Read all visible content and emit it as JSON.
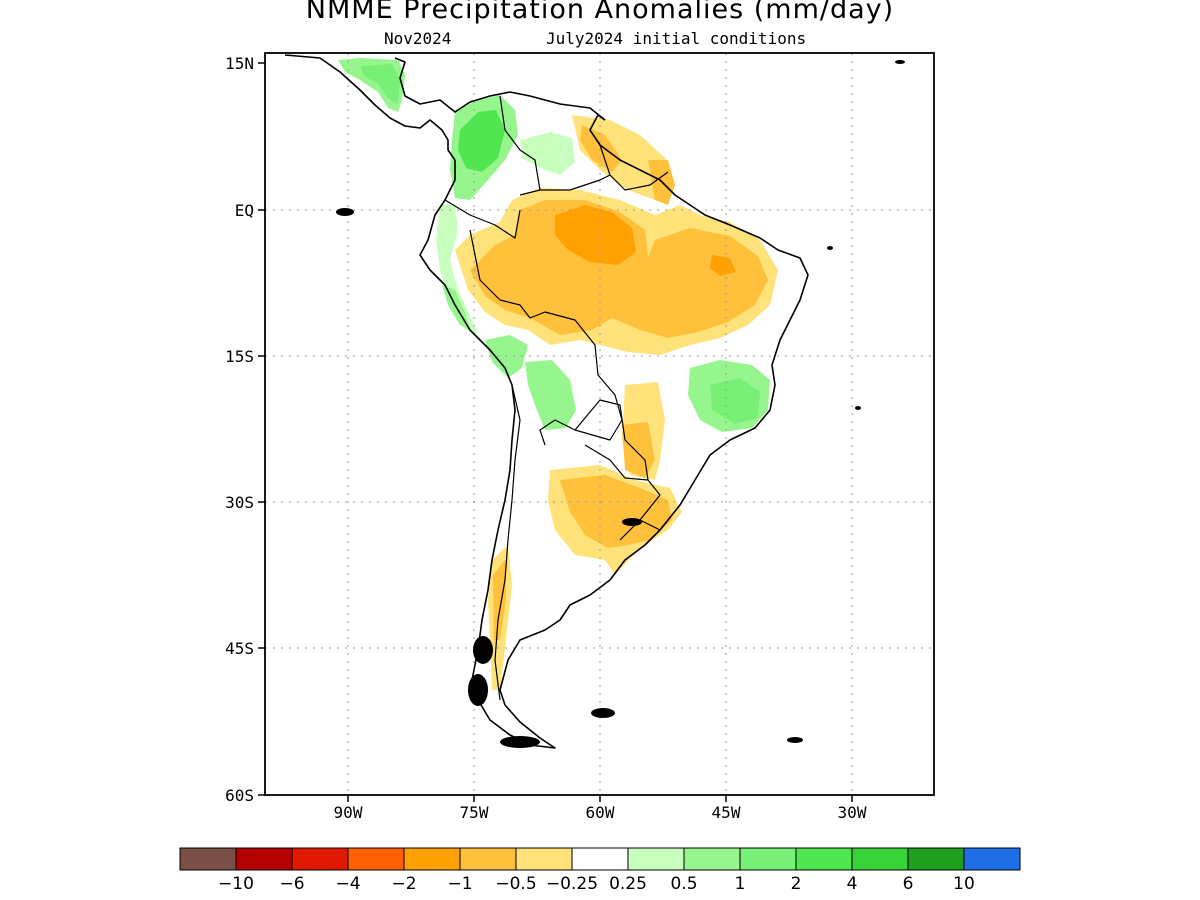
{
  "title": "NMME Precipitation Anomalies (mm/day)",
  "subtitle_left": "Nov2024",
  "subtitle_right": "July2024 initial conditions",
  "lat_ticks": [
    "15N",
    "EQ",
    "15S",
    "30S",
    "45S",
    "60S"
  ],
  "lon_ticks": [
    "90W",
    "75W",
    "60W",
    "45W",
    "30W"
  ],
  "colorbar": {
    "colors": [
      "#7a4f45",
      "#b40000",
      "#e01a00",
      "#ff6000",
      "#ffa100",
      "#ffc03c",
      "#ffe27a",
      "#ffffff",
      "#c8ffbe",
      "#96f58c",
      "#78f078",
      "#50e650",
      "#37d237",
      "#1ea01e",
      "#1e6ee6"
    ],
    "labels": [
      "-10",
      "-6",
      "-4",
      "-2",
      "-1",
      "-0.5",
      "-0.25",
      "0.25",
      "0.5",
      "1",
      "2",
      "4",
      "6",
      "10"
    ]
  }
}
